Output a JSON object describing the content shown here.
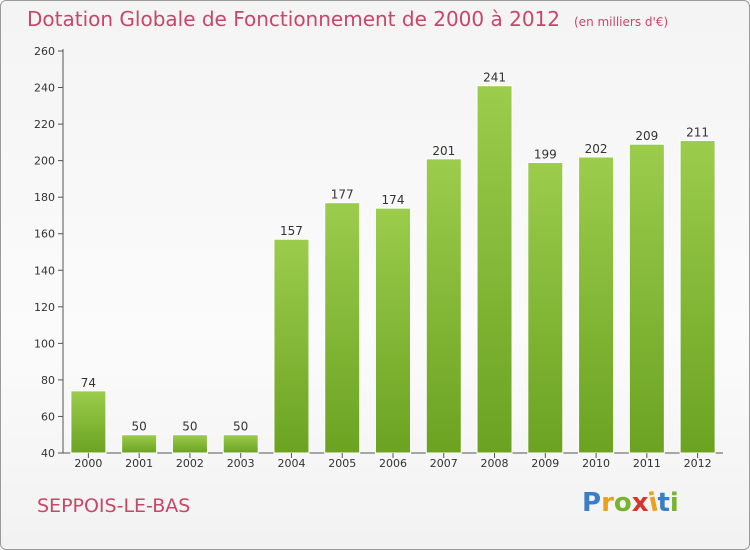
{
  "header": {
    "title": "Dotation Globale de Fonctionnement de 2000 à 2012",
    "unit_note": "(en milliers d'€)"
  },
  "commune": "SEPPOIS-LE-BAS",
  "logo": {
    "text": "Proxiti",
    "letter_colors": [
      "#3a7fc6",
      "#e8a21c",
      "#7ab32e",
      "#d9342b",
      "#e8a21c",
      "#3a7fc6",
      "#7ab32e"
    ]
  },
  "colors": {
    "title": "#c8466a",
    "bar_top": "#9ccc4c",
    "bar_bottom": "#6ba321",
    "axis": "#555555",
    "grid": "#d8d8d8"
  },
  "chart_data": {
    "type": "bar",
    "categories": [
      "2000",
      "2001",
      "2002",
      "2003",
      "2004",
      "2005",
      "2006",
      "2007",
      "2008",
      "2009",
      "2010",
      "2011",
      "2012"
    ],
    "values": [
      74,
      50,
      50,
      50,
      157,
      177,
      174,
      201,
      241,
      199,
      202,
      209,
      211
    ],
    "yticks": [
      40,
      60,
      80,
      100,
      120,
      140,
      160,
      180,
      200,
      220,
      240,
      260
    ],
    "ylim": [
      40,
      260
    ],
    "grid": false
  }
}
